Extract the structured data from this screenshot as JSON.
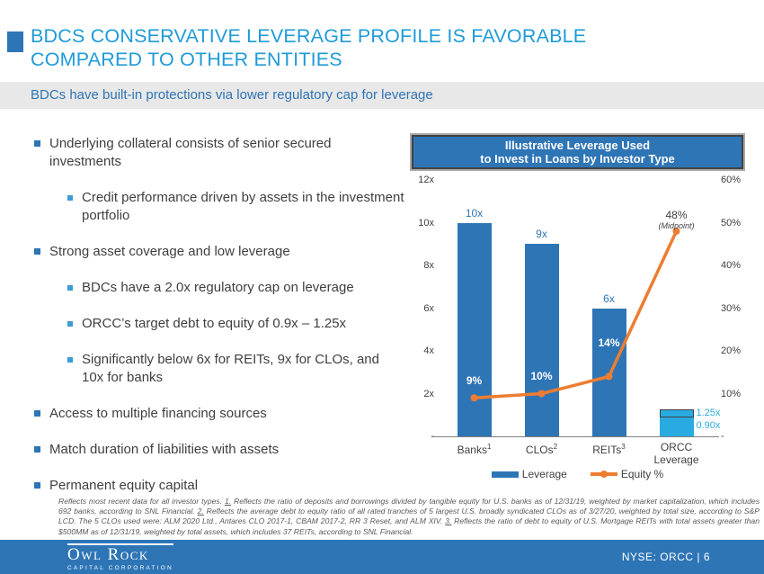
{
  "theme": {
    "accent_blue": "#2E75B6",
    "title_blue": "#1E9BD8",
    "cyan": "#29ABE2",
    "orange": "#ED7D31",
    "subtitle_bg": "#E8E8E8",
    "body_text": "#3F3F3F",
    "footnote_gray": "#595959"
  },
  "header": {
    "title_line1": "BDCS CONSERVATIVE LEVERAGE PROFILE IS FAVORABLE",
    "title_line2": "COMPARED TO OTHER ENTITIES",
    "subtitle": "BDCs have built-in protections via lower regulatory cap for leverage"
  },
  "bullets": [
    {
      "level": 1,
      "text": "Underlying collateral consists of senior secured investments"
    },
    {
      "level": 2,
      "text": "Credit performance driven by assets in the investment portfolio"
    },
    {
      "level": 1,
      "text": "Strong asset coverage and low leverage"
    },
    {
      "level": 2,
      "text": "BDCs have a 2.0x regulatory cap on leverage"
    },
    {
      "level": 2,
      "text": "ORCC’s target debt to equity of 0.9x – 1.25x"
    },
    {
      "level": 2,
      "text": "Significantly below 6x for REITs, 9x for CLOs, and 10x for banks"
    },
    {
      "level": 1,
      "text": "Access to multiple financing sources"
    },
    {
      "level": 1,
      "text": "Match duration of liabilities with assets"
    },
    {
      "level": 1,
      "text": "Permanent equity capital"
    }
  ],
  "chart_data": {
    "type": "bar+line combo",
    "title_line1": "Illustrative Leverage Used",
    "title_line2": "to Invest in Loans by Investor Type",
    "categories": [
      {
        "label": "Banks",
        "footnote_sup": "1"
      },
      {
        "label": "CLOs",
        "footnote_sup": "2"
      },
      {
        "label": "REITs",
        "footnote_sup": "3"
      },
      {
        "label": "ORCC Leverage",
        "footnote_sup": ""
      }
    ],
    "series": [
      {
        "name": "Leverage",
        "type": "bar",
        "axis": "left",
        "values": [
          10,
          9,
          6,
          null
        ],
        "value_labels": [
          "10x",
          "9x",
          "6x",
          null
        ],
        "color": "#2E75B6"
      },
      {
        "name": "Equity %",
        "type": "line",
        "axis": "right",
        "values": [
          9,
          10,
          14,
          48
        ],
        "value_labels": [
          "9%",
          "10%",
          "14%",
          "48%"
        ],
        "color": "#ED7D31"
      }
    ],
    "orcc_bar": {
      "range_low": 0.9,
      "range_high": 1.25,
      "low_label": "0.90x",
      "high_label": "1.25x",
      "color": "#29ABE2"
    },
    "midpoint_note": "(Midpoint)",
    "left_axis": {
      "ticks": [
        "12x",
        "10x",
        "8x",
        "6x",
        "4x",
        "2x",
        "-"
      ],
      "min": 0,
      "max": 12
    },
    "right_axis": {
      "ticks": [
        "60%",
        "50%",
        "40%",
        "30%",
        "20%",
        "10%",
        "-"
      ],
      "min": 0,
      "max": 60
    },
    "legend": [
      {
        "label": "Leverage",
        "swatch": "bar"
      },
      {
        "label": "Equity %",
        "swatch": "line"
      }
    ],
    "gridlines": false,
    "legend_position": "bottom"
  },
  "footnote": {
    "segments": [
      {
        "t": "Reflects most recent data for all investor types. "
      },
      {
        "t": "1.",
        "u": true
      },
      {
        "t": " Reflects the ratio of deposits and borrowings divided by tangible equity for U.S. banks as of 12/31/19, weighted by market capitalization, which includes 692 banks, according to SNL Financial. "
      },
      {
        "t": "2.",
        "u": true
      },
      {
        "t": " Reflects the average debt to equity ratio of all rated tranches of 5 largest U.S. broadly syndicated CLOs as of 3/27/20, weighted by total size, according to S&P LCD. The 5 CLOs used were: ALM 2020 Ltd., Antares CLO 2017-1, CBAM 2017-2, RR 3 Reset, and ALM XIV. "
      },
      {
        "t": "3.",
        "u": true
      },
      {
        "t": " Reflects the ratio of debt to equity of U.S. Mortgage REITs with total assets greater than $500MM as of 12/31/19, weighted by total assets, which includes 37 REITs, according to SNL Financial."
      }
    ]
  },
  "footer": {
    "logo_name": "Owl Rock",
    "logo_sub": "CAPITAL CORPORATION",
    "ticker": "NYSE: ORCC  |  6"
  }
}
